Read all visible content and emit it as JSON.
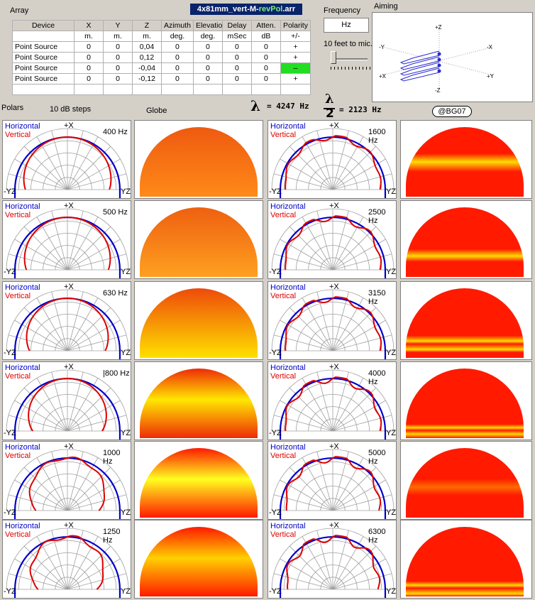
{
  "array_label": "Array",
  "file_title": {
    "part1": "4x81mm_vert-M-",
    "part2": "revPol",
    "part3": ".arr"
  },
  "table": {
    "headers": [
      "Device",
      "X",
      "Y",
      "Z",
      "Azimuth",
      "Elevation",
      "Delay",
      "Atten.",
      "Polarity"
    ],
    "units": [
      "",
      "m.",
      "m.",
      "m.",
      "deg.",
      "deg.",
      "mSec",
      "dB",
      "+/-"
    ],
    "rows": [
      [
        "Point Source",
        "0",
        "0",
        "0,04",
        "0",
        "0",
        "0",
        "0",
        "+"
      ],
      [
        "Point Source",
        "0",
        "0",
        "0,12",
        "0",
        "0",
        "0",
        "0",
        "+"
      ],
      [
        "Point Source",
        "0",
        "0",
        "-0,04",
        "0",
        "0",
        "0",
        "0",
        "–"
      ],
      [
        "Point Source",
        "0",
        "0",
        "-0,12",
        "0",
        "0",
        "0",
        "0",
        "+"
      ]
    ]
  },
  "frequency": {
    "label": "Frequency",
    "unit": "Hz",
    "distance": "10 feet to mic."
  },
  "aiming": {
    "label": "Aiming",
    "axes": [
      "+Z",
      "-Z",
      "-Y",
      "+Y",
      "+X",
      "-X"
    ]
  },
  "section": {
    "polars": "Polars",
    "steps": "10 dB steps",
    "globe": "Globe"
  },
  "lambda": {
    "symbol": "λ",
    "full": "= 4247 Hz",
    "half_num": "λ",
    "half_den": "2",
    "half": "= 2123 Hz"
  },
  "badge": "@BG07",
  "legend": {
    "horizontal": "Horizontal",
    "vertical": "Vertical"
  },
  "axis_labels": {
    "top": "+X",
    "left": "-YZ",
    "right": "YZ"
  },
  "colors": {
    "horizontal": "#0000cc",
    "vertical": "#dd0000",
    "grid": "#a0a0a0",
    "negative_polarity": "#22dd22"
  },
  "frequencies": [
    "400 Hz",
    "500 Hz",
    "630 Hz",
    "|800 Hz",
    "1000 Hz",
    "1250 Hz",
    "1600 Hz",
    "2500 Hz",
    "3150 Hz",
    "4000 Hz",
    "5000 Hz",
    "6300 Hz"
  ]
}
